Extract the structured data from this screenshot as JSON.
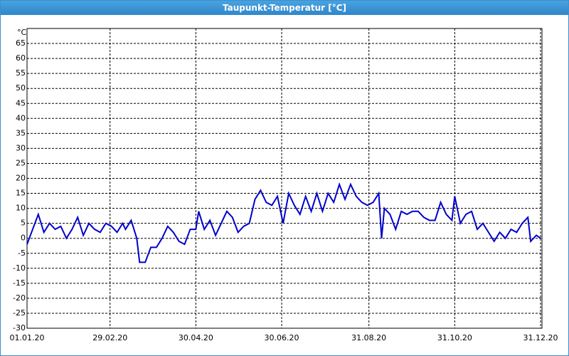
{
  "window_title": "Taupunkt-Temperatur [°C]",
  "chart_data": {
    "type": "line",
    "y_unit": "°C",
    "x": [
      "01.01.20",
      "05.01.20",
      "09.01.20",
      "13.01.20",
      "17.01.20",
      "21.01.20",
      "25.01.20",
      "29.01.20",
      "02.02.20",
      "06.02.20",
      "10.02.20",
      "14.02.20",
      "18.02.20",
      "22.02.20",
      "26.02.20",
      "01.03.20",
      "05.03.20",
      "09.03.20",
      "11.03.20",
      "15.03.20",
      "19.03.20",
      "21.03.20",
      "25.03.20",
      "29.03.20",
      "02.04.20",
      "06.04.20",
      "10.04.20",
      "14.04.20",
      "18.04.20",
      "22.04.20",
      "26.04.20",
      "30.04.20",
      "02.05.20",
      "06.05.20",
      "10.05.20",
      "14.05.20",
      "18.05.20",
      "22.05.20",
      "26.05.20",
      "30.05.20",
      "03.06.20",
      "07.06.20",
      "11.06.20",
      "15.06.20",
      "19.06.20",
      "23.06.20",
      "27.06.20",
      "01.07.20",
      "05.07.20",
      "09.07.20",
      "13.07.20",
      "17.07.20",
      "21.07.20",
      "25.07.20",
      "29.07.20",
      "02.08.20",
      "06.08.20",
      "10.08.20",
      "14.08.20",
      "18.08.20",
      "22.08.20",
      "26.08.20",
      "30.08.20",
      "03.09.20",
      "07.09.20",
      "09.09.20",
      "11.09.20",
      "15.09.20",
      "19.09.20",
      "23.09.20",
      "27.09.20",
      "01.10.20",
      "05.10.20",
      "09.10.20",
      "13.10.20",
      "17.10.20",
      "21.10.20",
      "25.10.20",
      "29.10.20",
      "31.10.20",
      "04.11.20",
      "08.11.20",
      "12.11.20",
      "16.11.20",
      "20.11.20",
      "24.11.20",
      "28.11.20",
      "02.12.20",
      "06.12.20",
      "10.12.20",
      "14.12.20",
      "18.12.20",
      "22.12.20",
      "24.12.20",
      "28.12.20",
      "31.12.20"
    ],
    "series": [
      {
        "color": "#0000cc",
        "values": [
          -2,
          3,
          8,
          2,
          5,
          3,
          4,
          0,
          3,
          7,
          1,
          5,
          3,
          2,
          5,
          4,
          2,
          5,
          3,
          6,
          0,
          -8,
          -8,
          -3,
          -3,
          0,
          4,
          2,
          -1,
          -2,
          3,
          3,
          9,
          3,
          6,
          1,
          5,
          9,
          7,
          2,
          4,
          5,
          13,
          16,
          12,
          11,
          14,
          5,
          15,
          11,
          8,
          14,
          9,
          15,
          9,
          15,
          12,
          18,
          13,
          18,
          14,
          12,
          11,
          12,
          15,
          0,
          10,
          8,
          3,
          9,
          8,
          9,
          9,
          7,
          6,
          6,
          12,
          8,
          6,
          14,
          5,
          8,
          9,
          3,
          5,
          2,
          -1,
          2,
          0,
          3,
          2,
          5,
          7,
          -1,
          1,
          0
        ]
      }
    ],
    "xlim": [
      "01.01.20",
      "31.12.20"
    ],
    "xticks": [
      "01.01.20",
      "29.02.20",
      "30.04.20",
      "30.06.20",
      "31.08.20",
      "31.10.20",
      "31.12.20"
    ],
    "ylim": [
      -30,
      70
    ],
    "yticks": [
      -30,
      -25,
      -20,
      -15,
      -10,
      -5,
      0,
      5,
      10,
      15,
      20,
      25,
      30,
      35,
      40,
      45,
      50,
      55,
      60,
      65
    ],
    "grid": true
  }
}
